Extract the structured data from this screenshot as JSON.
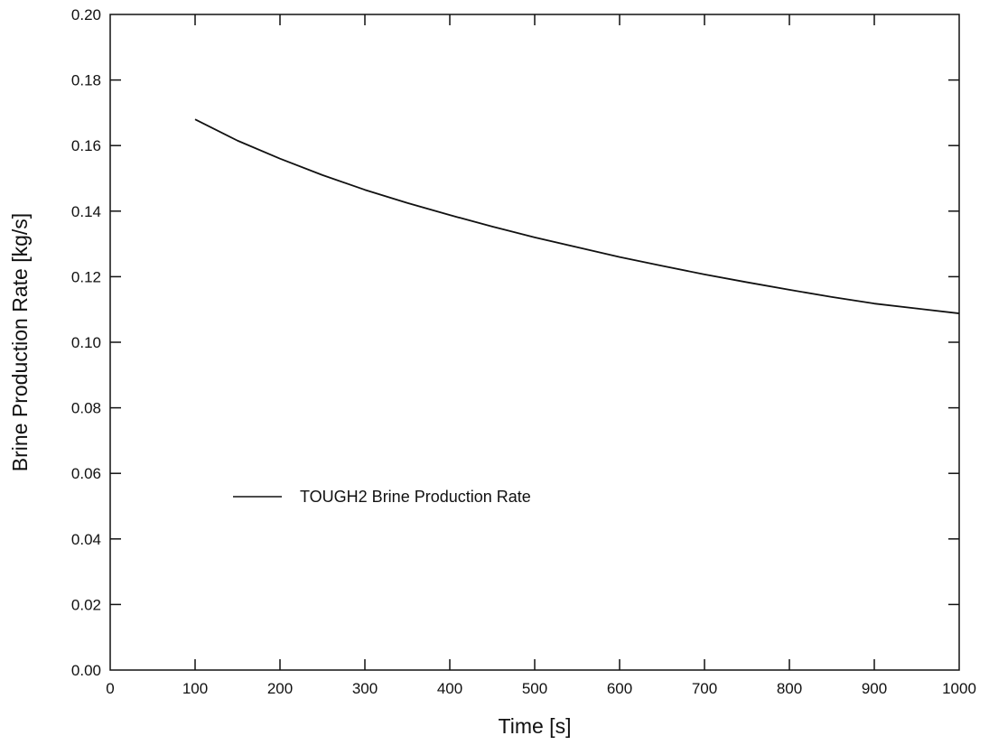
{
  "chart_data": {
    "type": "line",
    "title": "",
    "xlabel": "Time [s]",
    "ylabel": "Brine Production Rate [kg/s]",
    "xlim": [
      0,
      1000
    ],
    "ylim": [
      0,
      0.2
    ],
    "x_ticks": [
      0,
      100,
      200,
      300,
      400,
      500,
      600,
      700,
      800,
      900,
      1000
    ],
    "x_tick_labels": [
      "0",
      "100",
      "200",
      "300",
      "400",
      "500",
      "600",
      "700",
      "800",
      "900",
      "1000"
    ],
    "y_ticks": [
      0,
      0.02,
      0.04,
      0.06,
      0.08,
      0.1,
      0.12,
      0.14,
      0.16,
      0.18,
      0.2
    ],
    "y_tick_labels": [
      "0.00",
      "0.02",
      "0.04",
      "0.06",
      "0.08",
      "0.10",
      "0.12",
      "0.14",
      "0.16",
      "0.18",
      "0.20"
    ],
    "grid": false,
    "legend_position": "center-left",
    "series": [
      {
        "name": "TOUGH2 Brine Production Rate",
        "color": "#111111",
        "x": [
          100,
          150,
          200,
          250,
          300,
          350,
          400,
          450,
          500,
          550,
          600,
          650,
          700,
          750,
          800,
          850,
          900,
          950,
          1000
        ],
        "y": [
          0.168,
          0.1615,
          0.156,
          0.151,
          0.1465,
          0.1425,
          0.1388,
          0.1353,
          0.132,
          0.129,
          0.126,
          0.1233,
          0.1207,
          0.1183,
          0.116,
          0.1138,
          0.1118,
          0.1103,
          0.1088
        ]
      }
    ]
  }
}
